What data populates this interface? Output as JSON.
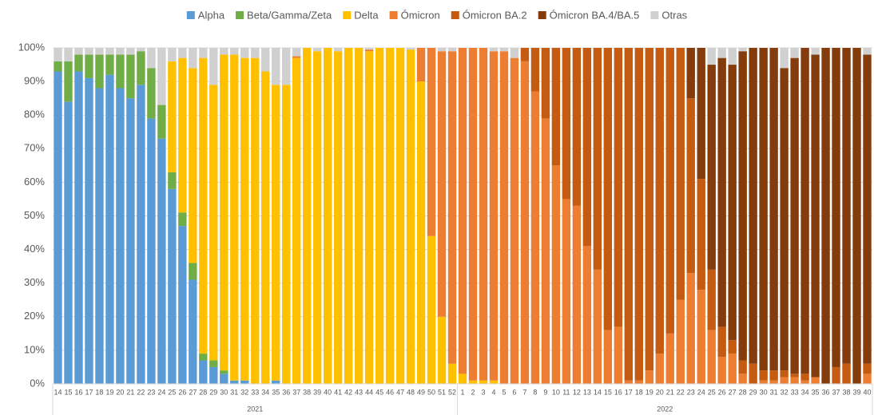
{
  "chart_data": {
    "type": "stacked_bar",
    "category_groups": [
      {
        "label": "2021",
        "categories": [
          "14",
          "15",
          "16",
          "17",
          "18",
          "19",
          "20",
          "21",
          "22",
          "23",
          "24",
          "25",
          "26",
          "27",
          "28",
          "29",
          "30",
          "31",
          "32",
          "33",
          "34",
          "35",
          "36",
          "37",
          "38",
          "39",
          "40",
          "41",
          "42",
          "43",
          "44",
          "45",
          "46",
          "47",
          "48",
          "49",
          "50",
          "51",
          "52"
        ]
      },
      {
        "label": "2022",
        "categories": [
          "1",
          "2",
          "3",
          "4",
          "5",
          "6",
          "7",
          "8",
          "9",
          "10",
          "11",
          "12",
          "13",
          "14",
          "15",
          "16",
          "17",
          "18",
          "19",
          "20",
          "21",
          "22",
          "23",
          "24",
          "25",
          "26",
          "27",
          "28",
          "29",
          "30",
          "31",
          "32",
          "33",
          "34",
          "35",
          "36",
          "37",
          "38",
          "39",
          "40"
        ]
      }
    ],
    "series": [
      {
        "name": "Alpha",
        "color": "#5b9bd5",
        "values": [
          93,
          84,
          93,
          91,
          88,
          92,
          88,
          85,
          89,
          79,
          73,
          58,
          47,
          31,
          7,
          5,
          3,
          1,
          1,
          0,
          0,
          1,
          0,
          0,
          0,
          0,
          0,
          0,
          0,
          0,
          0,
          0,
          0,
          0,
          0,
          0,
          0,
          0,
          0,
          0,
          0,
          0,
          0,
          0,
          0,
          0,
          0,
          0,
          0,
          0,
          0,
          0,
          0,
          0,
          0,
          0,
          0,
          0,
          0,
          0,
          0,
          0,
          0,
          0,
          0,
          0,
          0,
          0,
          0,
          0,
          0,
          0,
          0,
          0,
          0,
          0,
          0,
          0,
          0
        ]
      },
      {
        "name": "Beta/Gamma/Zeta",
        "color": "#70ad47",
        "values": [
          3,
          12,
          5,
          7,
          10,
          6,
          10,
          13,
          10,
          15,
          10,
          5,
          4,
          5,
          2,
          2,
          1,
          0,
          0,
          0,
          0,
          0,
          0,
          0,
          0,
          0,
          0,
          0,
          0,
          0,
          0,
          0,
          0,
          0,
          0,
          0,
          0,
          0,
          0,
          0,
          0,
          0,
          0,
          0,
          0,
          0,
          0,
          0,
          0,
          0,
          0,
          0,
          0,
          0,
          0,
          0,
          0,
          0,
          0,
          0,
          0,
          0,
          0,
          0,
          0,
          0,
          0,
          0,
          0,
          0,
          0,
          0,
          0,
          0,
          0,
          0,
          0,
          0,
          0
        ]
      },
      {
        "name": "Delta",
        "color": "#ffc000",
        "values": [
          0,
          0,
          0,
          0,
          0,
          0,
          0,
          0,
          0,
          0,
          0,
          33,
          46,
          58,
          88,
          82,
          94,
          97,
          96,
          97,
          93,
          88,
          89,
          97,
          100,
          99,
          100,
          99,
          100,
          100,
          99,
          100,
          100,
          100,
          99.5,
          90,
          44,
          20,
          6,
          3,
          1,
          1,
          1,
          0,
          0,
          0,
          0,
          0,
          0,
          0,
          0,
          0,
          0,
          0,
          0,
          0,
          0,
          0,
          0,
          0,
          0,
          0,
          0,
          0,
          0,
          0,
          0,
          0,
          0,
          0,
          0,
          0,
          0,
          0,
          0,
          0,
          0,
          0,
          0
        ]
      },
      {
        "name": "Ómicron",
        "color": "#ed7d31",
        "values": [
          0,
          0,
          0,
          0,
          0,
          0,
          0,
          0,
          0,
          0,
          0,
          0,
          0,
          0,
          0,
          0,
          0,
          0,
          0,
          0,
          0,
          0,
          0,
          0.5,
          0,
          0,
          0,
          0,
          0,
          0,
          0.5,
          0,
          0,
          0,
          0,
          10,
          56,
          79,
          93,
          97,
          99,
          99,
          98,
          99,
          97,
          96,
          87,
          79,
          65,
          55,
          53,
          41,
          34,
          16,
          17,
          1,
          1,
          4,
          9,
          15,
          25,
          33,
          28,
          16,
          8,
          9,
          3,
          0,
          1,
          1,
          2,
          2,
          1,
          2,
          0,
          0,
          0,
          0,
          3
        ]
      },
      {
        "name": "Ómicron BA.2",
        "color": "#c55a11",
        "values": [
          0,
          0,
          0,
          0,
          0,
          0,
          0,
          0,
          0,
          0,
          0,
          0,
          0,
          0,
          0,
          0,
          0,
          0,
          0,
          0,
          0,
          0,
          0,
          0,
          0,
          0,
          0,
          0,
          0,
          0,
          0,
          0,
          0,
          0,
          0,
          0,
          0,
          0,
          0,
          0,
          0,
          0,
          0,
          0,
          0,
          4,
          13,
          21,
          35,
          45,
          47,
          59,
          66,
          84,
          83,
          99,
          99,
          96,
          91,
          85,
          75,
          52,
          33,
          18,
          9,
          4,
          4,
          6,
          3,
          3,
          2,
          1,
          2,
          0,
          0,
          5,
          6,
          0,
          3
        ]
      },
      {
        "name": "Ómicron BA.4/BA.5",
        "color": "#843c0c",
        "values": [
          0,
          0,
          0,
          0,
          0,
          0,
          0,
          0,
          0,
          0,
          0,
          0,
          0,
          0,
          0,
          0,
          0,
          0,
          0,
          0,
          0,
          0,
          0,
          0,
          0,
          0,
          0,
          0,
          0,
          0,
          0,
          0,
          0,
          0,
          0,
          0,
          0,
          0,
          0,
          0,
          0,
          0,
          0,
          0,
          0,
          0,
          0,
          0,
          0,
          0,
          0,
          0,
          0,
          0,
          0,
          0,
          0,
          0,
          0,
          0,
          0,
          15,
          39,
          61,
          80,
          82,
          92,
          94,
          96,
          96,
          90,
          94,
          97,
          96,
          100,
          95,
          94,
          100,
          92
        ]
      },
      {
        "name": "Otras",
        "color": "#d0d0d0",
        "values": [
          4,
          4,
          2,
          2,
          2,
          2,
          2,
          2,
          1,
          6,
          17,
          4,
          3,
          6,
          3,
          11,
          2,
          2,
          3,
          3,
          7,
          11,
          11,
          2.5,
          0,
          1,
          0,
          1,
          0,
          0,
          0.5,
          0,
          0,
          0,
          0.5,
          0,
          0,
          1,
          1,
          0,
          0,
          0,
          1,
          1,
          3,
          0,
          0,
          0,
          0,
          0,
          0,
          0,
          0,
          0,
          0,
          0,
          0,
          0,
          0,
          0,
          0,
          0,
          0,
          5,
          3,
          5,
          1,
          0,
          0,
          0,
          6,
          3,
          0,
          2,
          0,
          0,
          0,
          0,
          2
        ]
      }
    ],
    "ylim": [
      0,
      100
    ],
    "yticks": [
      {
        "value": 0,
        "label": "0%"
      },
      {
        "value": 10,
        "label": "10%"
      },
      {
        "value": 20,
        "label": "20%"
      },
      {
        "value": 30,
        "label": "30%"
      },
      {
        "value": 40,
        "label": "40%"
      },
      {
        "value": 50,
        "label": "50%"
      },
      {
        "value": 60,
        "label": "60%"
      },
      {
        "value": 70,
        "label": "70%"
      },
      {
        "value": 80,
        "label": "80%"
      },
      {
        "value": 90,
        "label": "90%"
      },
      {
        "value": 100,
        "label": "100%"
      }
    ],
    "grid": true,
    "legend": "top"
  }
}
